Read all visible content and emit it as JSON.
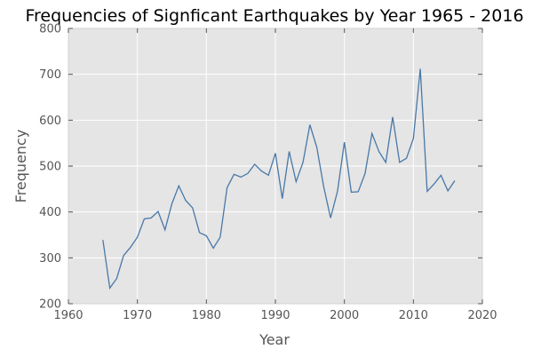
{
  "chart_data": {
    "type": "line",
    "title": "Frequencies of Signficant Earthquakes by Year 1965 - 2016",
    "xlabel": "Year",
    "ylabel": "Frequency",
    "xlim": [
      1960,
      2020
    ],
    "ylim": [
      200,
      800
    ],
    "xticks": [
      1960,
      1970,
      1980,
      1990,
      2000,
      2010,
      2020
    ],
    "yticks": [
      200,
      300,
      400,
      500,
      600,
      700,
      800
    ],
    "grid": true,
    "legend": "none",
    "colors": {
      "line": "#4878a8",
      "plot_background": "#e5e5e5",
      "grid": "#ffffff"
    },
    "series": [
      {
        "x": [
          1965,
          1966,
          1967,
          1968,
          1969,
          1970,
          1971,
          1972,
          1973,
          1974,
          1975,
          1976,
          1977,
          1978,
          1979,
          1980,
          1981,
          1982,
          1983,
          1984,
          1985,
          1986,
          1987,
          1988,
          1989,
          1990,
          1991,
          1992,
          1993,
          1994,
          1995,
          1996,
          1997,
          1998,
          1999,
          2000,
          2001,
          2002,
          2003,
          2004,
          2005,
          2006,
          2007,
          2008,
          2009,
          2010,
          2011,
          2012,
          2013,
          2014,
          2015,
          2016
        ],
        "values": [
          339,
          234,
          255,
          305,
          323,
          345,
          385,
          387,
          401,
          361,
          418,
          457,
          425,
          409,
          355,
          348,
          321,
          345,
          453,
          482,
          476,
          484,
          504,
          489,
          480,
          528,
          429,
          532,
          466,
          508,
          590,
          541,
          455,
          387,
          445,
          552,
          443,
          444,
          484,
          571,
          532,
          508,
          607,
          508,
          517,
          560,
          712,
          445,
          461,
          480,
          446,
          468
        ]
      }
    ]
  }
}
